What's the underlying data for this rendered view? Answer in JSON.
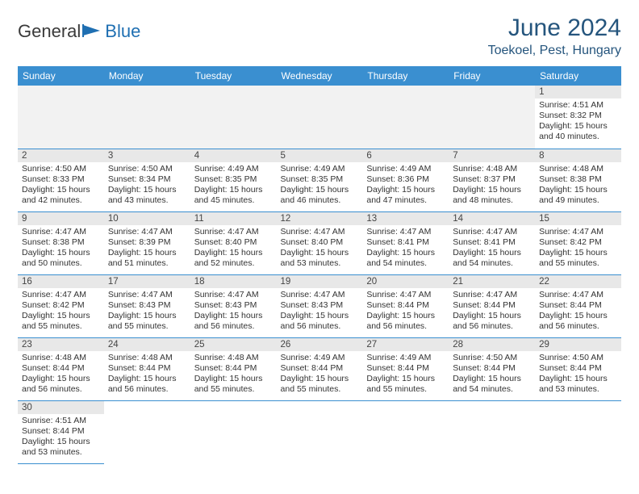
{
  "logo": {
    "text1": "General",
    "text2": "Blue"
  },
  "title": "June 2024",
  "location": "Toekoel, Pest, Hungary",
  "colors": {
    "header_bg": "#3a8fd0",
    "header_text": "#ffffff",
    "title_color": "#25557d",
    "daynum_bg": "#e8e8e8",
    "row_divider": "#3a8fd0",
    "logo_accent": "#1f6fb2"
  },
  "weekdays": [
    "Sunday",
    "Monday",
    "Tuesday",
    "Wednesday",
    "Thursday",
    "Friday",
    "Saturday"
  ],
  "layout": {
    "first_weekday_index": 6,
    "days_in_month": 30,
    "rows": 6,
    "cols": 7
  },
  "days": {
    "1": {
      "sunrise": "4:51 AM",
      "sunset": "8:32 PM",
      "daylight": "15 hours and 40 minutes."
    },
    "2": {
      "sunrise": "4:50 AM",
      "sunset": "8:33 PM",
      "daylight": "15 hours and 42 minutes."
    },
    "3": {
      "sunrise": "4:50 AM",
      "sunset": "8:34 PM",
      "daylight": "15 hours and 43 minutes."
    },
    "4": {
      "sunrise": "4:49 AM",
      "sunset": "8:35 PM",
      "daylight": "15 hours and 45 minutes."
    },
    "5": {
      "sunrise": "4:49 AM",
      "sunset": "8:35 PM",
      "daylight": "15 hours and 46 minutes."
    },
    "6": {
      "sunrise": "4:49 AM",
      "sunset": "8:36 PM",
      "daylight": "15 hours and 47 minutes."
    },
    "7": {
      "sunrise": "4:48 AM",
      "sunset": "8:37 PM",
      "daylight": "15 hours and 48 minutes."
    },
    "8": {
      "sunrise": "4:48 AM",
      "sunset": "8:38 PM",
      "daylight": "15 hours and 49 minutes."
    },
    "9": {
      "sunrise": "4:47 AM",
      "sunset": "8:38 PM",
      "daylight": "15 hours and 50 minutes."
    },
    "10": {
      "sunrise": "4:47 AM",
      "sunset": "8:39 PM",
      "daylight": "15 hours and 51 minutes."
    },
    "11": {
      "sunrise": "4:47 AM",
      "sunset": "8:40 PM",
      "daylight": "15 hours and 52 minutes."
    },
    "12": {
      "sunrise": "4:47 AM",
      "sunset": "8:40 PM",
      "daylight": "15 hours and 53 minutes."
    },
    "13": {
      "sunrise": "4:47 AM",
      "sunset": "8:41 PM",
      "daylight": "15 hours and 54 minutes."
    },
    "14": {
      "sunrise": "4:47 AM",
      "sunset": "8:41 PM",
      "daylight": "15 hours and 54 minutes."
    },
    "15": {
      "sunrise": "4:47 AM",
      "sunset": "8:42 PM",
      "daylight": "15 hours and 55 minutes."
    },
    "16": {
      "sunrise": "4:47 AM",
      "sunset": "8:42 PM",
      "daylight": "15 hours and 55 minutes."
    },
    "17": {
      "sunrise": "4:47 AM",
      "sunset": "8:43 PM",
      "daylight": "15 hours and 55 minutes."
    },
    "18": {
      "sunrise": "4:47 AM",
      "sunset": "8:43 PM",
      "daylight": "15 hours and 56 minutes."
    },
    "19": {
      "sunrise": "4:47 AM",
      "sunset": "8:43 PM",
      "daylight": "15 hours and 56 minutes."
    },
    "20": {
      "sunrise": "4:47 AM",
      "sunset": "8:44 PM",
      "daylight": "15 hours and 56 minutes."
    },
    "21": {
      "sunrise": "4:47 AM",
      "sunset": "8:44 PM",
      "daylight": "15 hours and 56 minutes."
    },
    "22": {
      "sunrise": "4:47 AM",
      "sunset": "8:44 PM",
      "daylight": "15 hours and 56 minutes."
    },
    "23": {
      "sunrise": "4:48 AM",
      "sunset": "8:44 PM",
      "daylight": "15 hours and 56 minutes."
    },
    "24": {
      "sunrise": "4:48 AM",
      "sunset": "8:44 PM",
      "daylight": "15 hours and 56 minutes."
    },
    "25": {
      "sunrise": "4:48 AM",
      "sunset": "8:44 PM",
      "daylight": "15 hours and 55 minutes."
    },
    "26": {
      "sunrise": "4:49 AM",
      "sunset": "8:44 PM",
      "daylight": "15 hours and 55 minutes."
    },
    "27": {
      "sunrise": "4:49 AM",
      "sunset": "8:44 PM",
      "daylight": "15 hours and 55 minutes."
    },
    "28": {
      "sunrise": "4:50 AM",
      "sunset": "8:44 PM",
      "daylight": "15 hours and 54 minutes."
    },
    "29": {
      "sunrise": "4:50 AM",
      "sunset": "8:44 PM",
      "daylight": "15 hours and 53 minutes."
    },
    "30": {
      "sunrise": "4:51 AM",
      "sunset": "8:44 PM",
      "daylight": "15 hours and 53 minutes."
    }
  },
  "labels": {
    "sunrise_prefix": "Sunrise: ",
    "sunset_prefix": "Sunset: ",
    "daylight_prefix": "Daylight: "
  }
}
